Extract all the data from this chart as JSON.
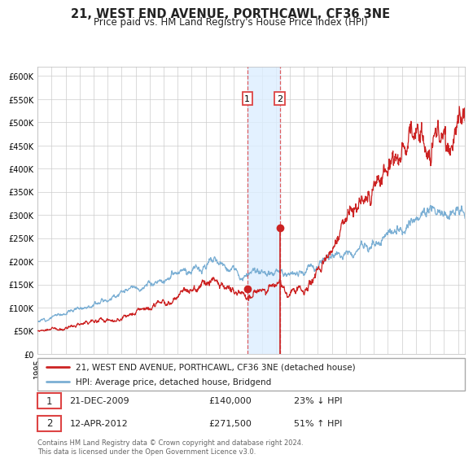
{
  "title": "21, WEST END AVENUE, PORTHCAWL, CF36 3NE",
  "subtitle": "Price paid vs. HM Land Registry's House Price Index (HPI)",
  "ylim": [
    0,
    620000
  ],
  "yticks": [
    0,
    50000,
    100000,
    150000,
    200000,
    250000,
    300000,
    350000,
    400000,
    450000,
    500000,
    550000,
    600000
  ],
  "hpi_color": "#7bafd4",
  "price_color": "#cc2222",
  "t1_x": 2009.97,
  "t1_y": 140000,
  "t2_x": 2012.28,
  "t2_y": 271500,
  "shade_color": "#ddeeff",
  "vline_color": "#dd4444",
  "legend_label1": "21, WEST END AVENUE, PORTHCAWL, CF36 3NE (detached house)",
  "legend_label2": "HPI: Average price, detached house, Bridgend",
  "info1_date": "21-DEC-2009",
  "info1_price": "£140,000",
  "info1_pct": "23% ↓ HPI",
  "info2_date": "12-APR-2012",
  "info2_price": "£271,500",
  "info2_pct": "51% ↑ HPI",
  "footer": "Contains HM Land Registry data © Crown copyright and database right 2024.\nThis data is licensed under the Open Government Licence v3.0.",
  "xmin": 1995.0,
  "xmax": 2025.5,
  "background": "#ffffff"
}
